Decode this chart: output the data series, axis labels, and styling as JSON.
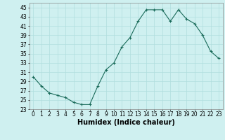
{
  "x": [
    0,
    1,
    2,
    3,
    4,
    5,
    6,
    7,
    8,
    9,
    10,
    11,
    12,
    13,
    14,
    15,
    16,
    17,
    18,
    19,
    20,
    21,
    22,
    23
  ],
  "y": [
    30,
    28,
    26.5,
    26,
    25.5,
    24.5,
    24,
    24,
    28,
    31.5,
    33,
    36.5,
    38.5,
    42,
    44.5,
    44.5,
    44.5,
    42,
    44.5,
    42.5,
    41.5,
    39,
    35.5,
    34
  ],
  "line_color": "#1a6b5a",
  "marker": "+",
  "bg_color": "#cff0f0",
  "grid_color": "#b0dede",
  "xlabel": "Humidex (Indice chaleur)",
  "ylim": [
    23,
    46
  ],
  "xlim": [
    -0.5,
    23.5
  ],
  "yticks": [
    23,
    25,
    27,
    29,
    31,
    33,
    35,
    37,
    39,
    41,
    43,
    45
  ],
  "xticks": [
    0,
    1,
    2,
    3,
    4,
    5,
    6,
    7,
    8,
    9,
    10,
    11,
    12,
    13,
    14,
    15,
    16,
    17,
    18,
    19,
    20,
    21,
    22,
    23
  ],
  "tick_fontsize": 5.5,
  "xlabel_fontsize": 7
}
